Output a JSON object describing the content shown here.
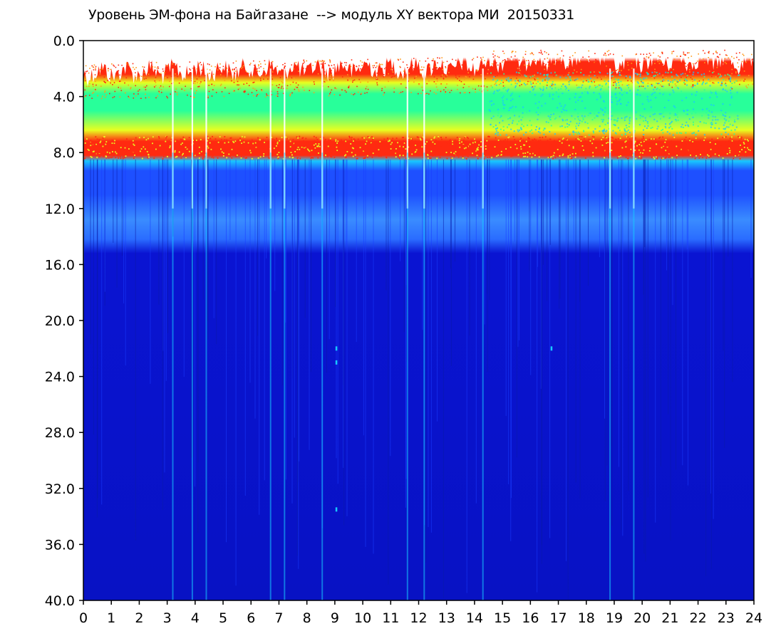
{
  "chart_data": {
    "type": "heatmap",
    "title": "Уровень ЭМ-фона на Байгазане  --> модуль XY вектора МИ  20150331",
    "xlabel": "",
    "ylabel": "",
    "xlim": [
      0,
      24
    ],
    "ylim": [
      0,
      40
    ],
    "y_inverted": true,
    "x_ticks": [
      "0",
      "1",
      "2",
      "3",
      "4",
      "5",
      "6",
      "7",
      "8",
      "9",
      "10",
      "11",
      "12",
      "13",
      "14",
      "15",
      "16",
      "17",
      "18",
      "19",
      "20",
      "21",
      "22",
      "23",
      "24"
    ],
    "y_ticks": [
      "0.0",
      "4.0",
      "8.0",
      "12.0",
      "16.0",
      "20.0",
      "24.0",
      "28.0",
      "32.0",
      "36.0",
      "40.0"
    ],
    "colormap": [
      "#0a14d2",
      "#1e50ff",
      "#18c8ff",
      "#28ff9a",
      "#e8ff20",
      "#ff2a10"
    ],
    "grid": false,
    "legend": "none",
    "bands": [
      {
        "name": "red-fringe-top",
        "y_from_hour0": 1.5,
        "y_from_hour24": 1.0,
        "color": "#ff2a10"
      },
      {
        "name": "green-yellow",
        "y_range": [
          2.5,
          7.5
        ],
        "color": "#28ff9a"
      },
      {
        "name": "red-band",
        "y_range": [
          7.0,
          8.3
        ],
        "color": "#ff2a10"
      },
      {
        "name": "cyan-transition",
        "y_range": [
          8.3,
          9.5
        ],
        "color": "#18c8ff"
      },
      {
        "name": "light-blue-band",
        "y_range": [
          11.5,
          15.0
        ],
        "color": "#1e50ff"
      },
      {
        "name": "deep-blue",
        "y_range": [
          15.0,
          40.0
        ],
        "color": "#0a14d2"
      }
    ],
    "bright_stripes_hours": [
      3.2,
      3.9,
      4.4,
      6.7,
      7.2,
      8.55,
      11.6,
      12.2,
      14.3,
      18.85,
      19.7
    ],
    "cyan_spots": [
      {
        "x": 9.05,
        "y": 22.0
      },
      {
        "x": 9.05,
        "y": 23.0
      },
      {
        "x": 9.05,
        "y": 33.5
      },
      {
        "x": 16.75,
        "y": 22.0
      }
    ]
  }
}
